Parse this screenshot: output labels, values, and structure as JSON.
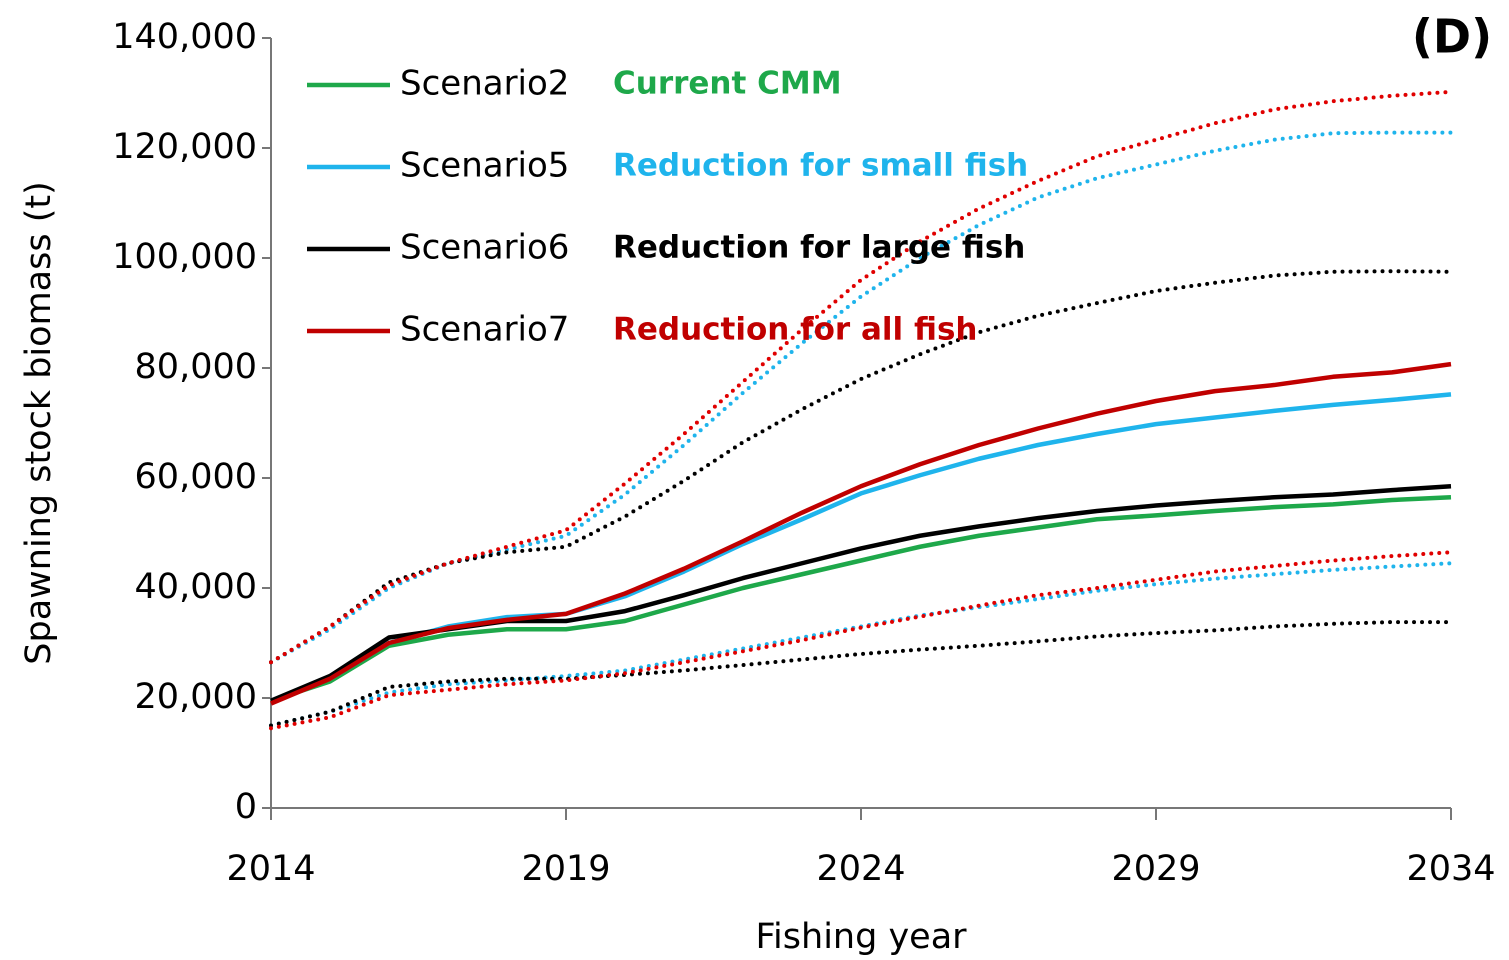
{
  "chart_data": {
    "type": "line",
    "panel_label": "(D)",
    "x_label": "Fishing year",
    "y_label": "Spawning stock biomass (t)",
    "x": [
      2014,
      2015,
      2016,
      2017,
      2018,
      2019,
      2020,
      2021,
      2022,
      2023,
      2024,
      2025,
      2026,
      2027,
      2028,
      2029,
      2030,
      2031,
      2032,
      2033,
      2034
    ],
    "xlim": [
      2014,
      2034
    ],
    "xticks": [
      2014,
      2019,
      2024,
      2029,
      2034
    ],
    "ylim": [
      0,
      140000
    ],
    "yticks": [
      0,
      {
        "value": 20000,
        "label": "20,000"
      },
      {
        "value": 40000,
        "label": "40,000"
      },
      {
        "value": 60000,
        "label": "60,000"
      },
      {
        "value": 80000,
        "label": "80,000"
      },
      {
        "value": 100000,
        "label": "100,000"
      },
      {
        "value": 120000,
        "label": "120,000"
      },
      {
        "value": 140000,
        "label": "140,000"
      }
    ],
    "grid": false,
    "series": [
      {
        "name": "Scenario2",
        "description": "Current CMM",
        "color": "#1ea84a",
        "dotted": false,
        "values": [
          19500,
          23000,
          29500,
          31500,
          32500,
          32500,
          34000,
          37000,
          40000,
          42500,
          45000,
          47500,
          49500,
          51000,
          52500,
          53200,
          54000,
          54700,
          55200,
          56000,
          56500
        ]
      },
      {
        "name": "Scenario5",
        "description": "Reduction for small fish",
        "color": "#1fb4ec",
        "dotted": false,
        "values": [
          19500,
          23500,
          30000,
          33000,
          34700,
          35300,
          38500,
          43000,
          48000,
          52500,
          57200,
          60500,
          63500,
          66000,
          68000,
          69800,
          71000,
          72200,
          73300,
          74200,
          75200
        ]
      },
      {
        "name": "Scenario6",
        "description": "Reduction for large fish",
        "color": "#000000",
        "dotted": false,
        "values": [
          19500,
          24000,
          31000,
          32500,
          34000,
          34000,
          35800,
          38700,
          41800,
          44500,
          47200,
          49500,
          51200,
          52700,
          54000,
          55000,
          55800,
          56500,
          57000,
          57800,
          58500
        ]
      },
      {
        "name": "Scenario7",
        "description": "Reduction for all fish",
        "color": "#c00000",
        "dotted": false,
        "values": [
          19000,
          23500,
          30000,
          32700,
          34200,
          35300,
          39000,
          43500,
          48500,
          53700,
          58500,
          62500,
          66000,
          69000,
          71700,
          74000,
          75800,
          76900,
          78400,
          79200,
          80700
        ]
      },
      {
        "color": "#1fb4ec",
        "dotted": true,
        "values": [
          26500,
          32500,
          40000,
          44500,
          47000,
          49500,
          57000,
          66000,
          75500,
          84500,
          93000,
          100000,
          106000,
          111000,
          114500,
          117000,
          119500,
          121500,
          122700,
          122800,
          122800
        ]
      },
      {
        "color": "#000000",
        "dotted": true,
        "values": [
          26500,
          33000,
          41000,
          44500,
          46500,
          47500,
          53000,
          59500,
          66500,
          72500,
          78000,
          82500,
          86500,
          89500,
          91800,
          94000,
          95500,
          96800,
          97500,
          97600,
          97500
        ]
      },
      {
        "color": "#e00000",
        "dotted": true,
        "values": [
          26500,
          33000,
          40500,
          44500,
          47500,
          50500,
          59000,
          68000,
          77500,
          87000,
          96000,
          103000,
          109000,
          114000,
          118500,
          121500,
          124500,
          127000,
          128500,
          129500,
          130200
        ]
      },
      {
        "color": "#1fb4ec",
        "dotted": true,
        "values": [
          15000,
          17500,
          21000,
          22500,
          23200,
          24000,
          25000,
          27000,
          29000,
          31000,
          33000,
          35000,
          36500,
          38000,
          39500,
          40700,
          41700,
          42500,
          43300,
          43900,
          44500
        ]
      },
      {
        "color": "#000000",
        "dotted": true,
        "values": [
          15000,
          17500,
          22000,
          23000,
          23500,
          23500,
          24200,
          25000,
          26000,
          27000,
          28000,
          28800,
          29500,
          30300,
          31200,
          31800,
          32300,
          33000,
          33500,
          33800,
          33800
        ]
      },
      {
        "color": "#e00000",
        "dotted": true,
        "values": [
          14500,
          16500,
          20500,
          21500,
          22500,
          23200,
          24500,
          26500,
          28500,
          30500,
          32800,
          34800,
          36800,
          38700,
          40000,
          41500,
          43000,
          44000,
          45000,
          45800,
          46500
        ]
      }
    ]
  }
}
